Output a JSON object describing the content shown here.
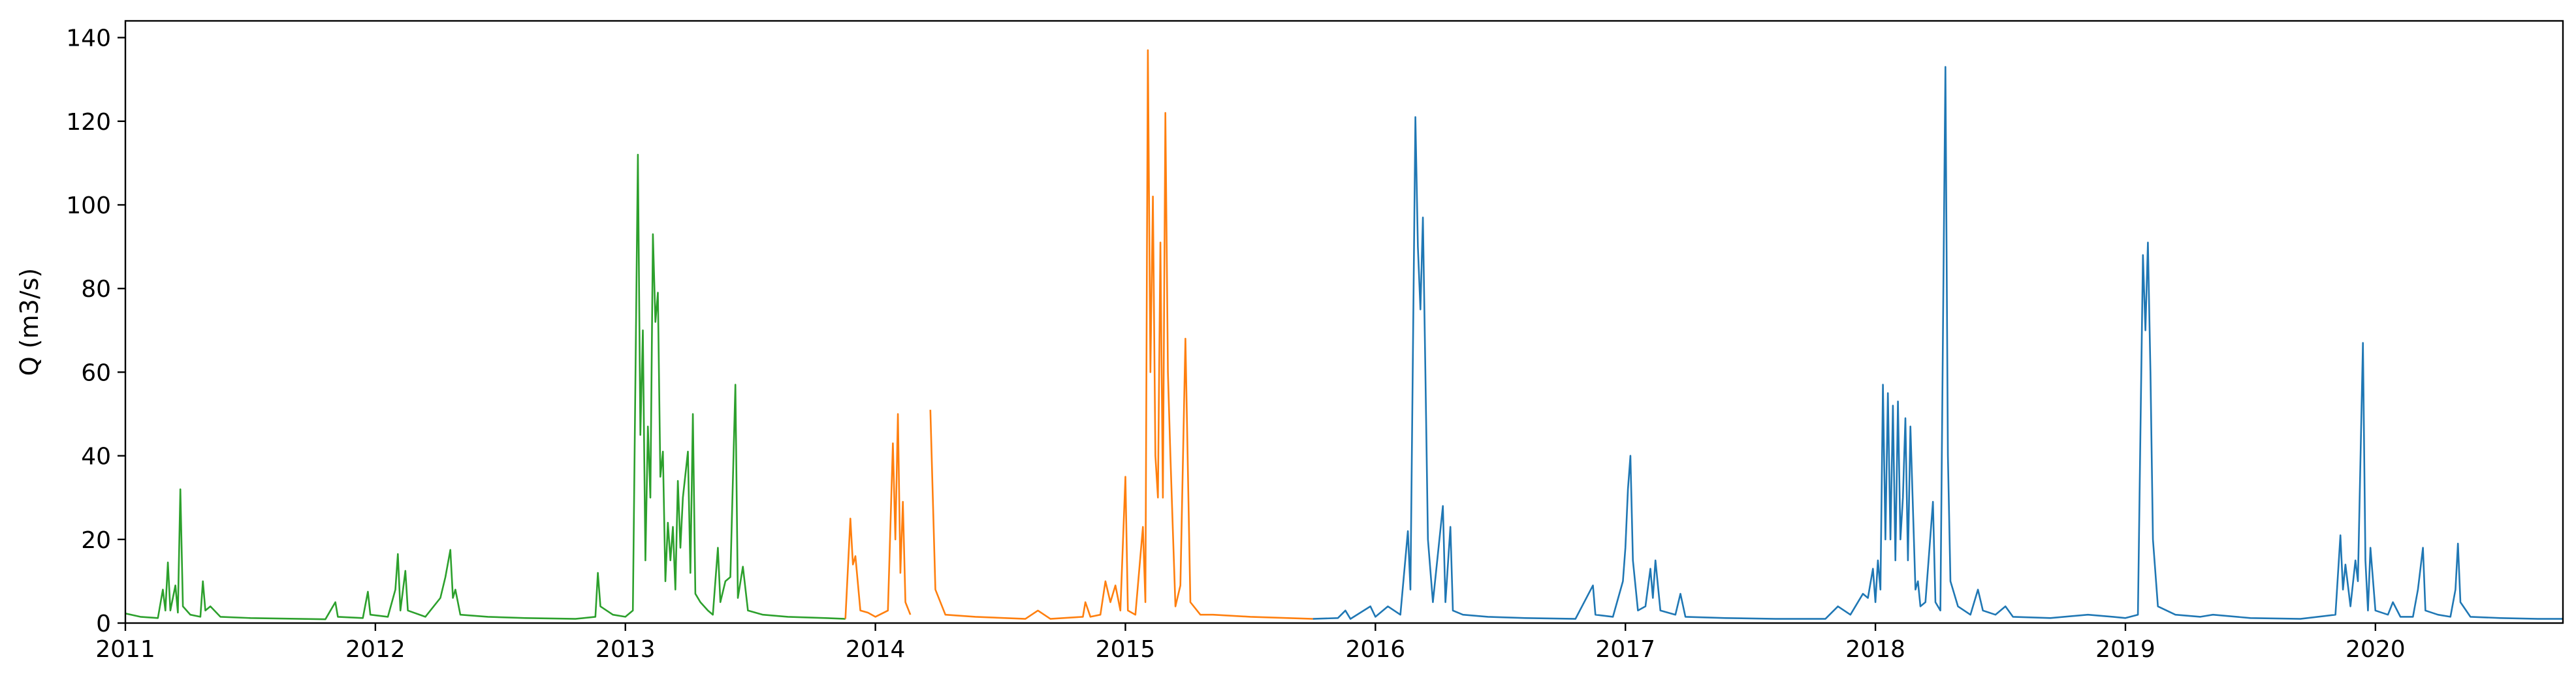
{
  "chart_data": {
    "type": "line",
    "title": "",
    "xlabel": "",
    "ylabel": "Q (m3/s)",
    "xlim": [
      2011.0,
      2020.75
    ],
    "ylim": [
      0,
      144
    ],
    "grid": false,
    "legend": "none",
    "x_ticks": [
      2011,
      2012,
      2013,
      2014,
      2015,
      2016,
      2017,
      2018,
      2019,
      2020
    ],
    "x_tick_labels": [
      "2011",
      "2012",
      "2013",
      "2014",
      "2015",
      "2016",
      "2017",
      "2018",
      "2019",
      "2020"
    ],
    "y_ticks": [
      0,
      20,
      40,
      60,
      80,
      100,
      120,
      140
    ],
    "y_tick_labels": [
      "0",
      "20",
      "40",
      "60",
      "80",
      "100",
      "120",
      "140"
    ],
    "series": [
      {
        "color": "#2ca02c",
        "segments": [
          [
            [
              2011.0,
              2.3
            ],
            [
              2011.06,
              1.5
            ],
            [
              2011.13,
              1.2
            ],
            [
              2011.15,
              8
            ],
            [
              2011.16,
              3
            ],
            [
              2011.17,
              14.5
            ],
            [
              2011.18,
              3
            ],
            [
              2011.2,
              9
            ],
            [
              2011.21,
              2.5
            ],
            [
              2011.22,
              32
            ],
            [
              2011.23,
              4
            ],
            [
              2011.26,
              2
            ],
            [
              2011.3,
              1.5
            ],
            [
              2011.31,
              10
            ],
            [
              2011.32,
              3
            ],
            [
              2011.34,
              4
            ],
            [
              2011.38,
              1.5
            ],
            [
              2011.5,
              1.2
            ],
            [
              2011.7,
              1
            ],
            [
              2011.8,
              0.9
            ],
            [
              2011.84,
              5
            ],
            [
              2011.85,
              1.5
            ],
            [
              2011.95,
              1.2
            ],
            [
              2011.97,
              7.5
            ],
            [
              2011.98,
              2
            ],
            [
              2012.05,
              1.5
            ],
            [
              2012.08,
              8
            ],
            [
              2012.09,
              16.5
            ],
            [
              2012.1,
              3
            ],
            [
              2012.12,
              12.5
            ],
            [
              2012.13,
              3
            ],
            [
              2012.2,
              1.5
            ],
            [
              2012.26,
              6
            ],
            [
              2012.28,
              11
            ],
            [
              2012.3,
              17.5
            ],
            [
              2012.31,
              6
            ],
            [
              2012.32,
              8
            ],
            [
              2012.34,
              2
            ],
            [
              2012.45,
              1.5
            ],
            [
              2012.6,
              1.2
            ],
            [
              2012.8,
              1
            ],
            [
              2012.88,
              1.5
            ],
            [
              2012.89,
              12
            ],
            [
              2012.9,
              4
            ],
            [
              2012.95,
              2
            ],
            [
              2013.0,
              1.5
            ],
            [
              2013.03,
              3
            ],
            [
              2013.05,
              112
            ],
            [
              2013.06,
              45
            ],
            [
              2013.07,
              70
            ],
            [
              2013.08,
              15
            ],
            [
              2013.09,
              47
            ],
            [
              2013.1,
              30
            ],
            [
              2013.11,
              93
            ],
            [
              2013.12,
              72
            ],
            [
              2013.13,
              79
            ],
            [
              2013.14,
              35
            ],
            [
              2013.15,
              41
            ],
            [
              2013.16,
              10
            ],
            [
              2013.17,
              24
            ],
            [
              2013.18,
              15
            ],
            [
              2013.19,
              23
            ],
            [
              2013.2,
              8
            ],
            [
              2013.21,
              34
            ],
            [
              2013.22,
              18
            ],
            [
              2013.23,
              30
            ],
            [
              2013.25,
              41
            ],
            [
              2013.26,
              12
            ],
            [
              2013.27,
              50
            ],
            [
              2013.28,
              7
            ],
            [
              2013.3,
              5
            ],
            [
              2013.33,
              3
            ],
            [
              2013.35,
              2
            ],
            [
              2013.37,
              18
            ],
            [
              2013.38,
              5
            ],
            [
              2013.4,
              10
            ],
            [
              2013.42,
              11
            ],
            [
              2013.44,
              57
            ],
            [
              2013.45,
              6
            ],
            [
              2013.47,
              13.5
            ],
            [
              2013.49,
              3
            ],
            [
              2013.55,
              2
            ],
            [
              2013.65,
              1.5
            ],
            [
              2013.8,
              1.2
            ],
            [
              2013.88,
              1
            ]
          ]
        ]
      },
      {
        "color": "#ff7f0e",
        "segments": [
          [
            [
              2013.88,
              1
            ],
            [
              2013.9,
              25
            ],
            [
              2013.91,
              14
            ],
            [
              2013.92,
              16
            ],
            [
              2013.94,
              3
            ],
            [
              2013.97,
              2.5
            ],
            [
              2014.0,
              1.5
            ],
            [
              2014.05,
              3
            ],
            [
              2014.07,
              43
            ],
            [
              2014.08,
              20
            ],
            [
              2014.09,
              50
            ],
            [
              2014.1,
              12
            ],
            [
              2014.11,
              29
            ],
            [
              2014.12,
              5
            ],
            [
              2014.14,
              2
            ]
          ],
          [
            [
              2014.22,
              51
            ],
            [
              2014.24,
              8
            ],
            [
              2014.28,
              2
            ],
            [
              2014.4,
              1.5
            ],
            [
              2014.6,
              1
            ],
            [
              2014.65,
              3
            ],
            [
              2014.7,
              1
            ],
            [
              2014.83,
              1.5
            ],
            [
              2014.84,
              5
            ],
            [
              2014.86,
              1.5
            ],
            [
              2014.9,
              2
            ],
            [
              2014.92,
              10
            ],
            [
              2014.94,
              5
            ],
            [
              2014.96,
              9
            ],
            [
              2014.98,
              3
            ],
            [
              2015.0,
              35
            ],
            [
              2015.01,
              3
            ],
            [
              2015.04,
              2
            ],
            [
              2015.07,
              23
            ],
            [
              2015.08,
              5
            ],
            [
              2015.09,
              137
            ],
            [
              2015.1,
              60
            ],
            [
              2015.11,
              102
            ],
            [
              2015.12,
              40
            ],
            [
              2015.13,
              30
            ],
            [
              2015.14,
              91
            ],
            [
              2015.15,
              30
            ],
            [
              2015.16,
              122
            ],
            [
              2015.17,
              60
            ],
            [
              2015.18,
              40
            ],
            [
              2015.19,
              22
            ],
            [
              2015.2,
              4
            ],
            [
              2015.22,
              9
            ],
            [
              2015.24,
              68
            ],
            [
              2015.26,
              5
            ],
            [
              2015.3,
              2
            ],
            [
              2015.35,
              2
            ],
            [
              2015.5,
              1.5
            ],
            [
              2015.65,
              1.2
            ],
            [
              2015.75,
              1
            ]
          ]
        ]
      },
      {
        "color": "#1f77b4",
        "segments": [
          [
            [
              2015.75,
              1
            ],
            [
              2015.85,
              1.2
            ],
            [
              2015.88,
              3
            ],
            [
              2015.9,
              1
            ],
            [
              2015.98,
              4
            ],
            [
              2016.0,
              1.5
            ],
            [
              2016.05,
              4
            ],
            [
              2016.1,
              2
            ],
            [
              2016.13,
              22
            ],
            [
              2016.14,
              8
            ],
            [
              2016.16,
              121
            ],
            [
              2016.17,
              90
            ],
            [
              2016.18,
              75
            ],
            [
              2016.19,
              97
            ],
            [
              2016.2,
              60
            ],
            [
              2016.21,
              20
            ],
            [
              2016.23,
              5
            ],
            [
              2016.27,
              28
            ],
            [
              2016.28,
              5
            ],
            [
              2016.3,
              23
            ],
            [
              2016.31,
              3
            ],
            [
              2016.35,
              2
            ],
            [
              2016.45,
              1.5
            ],
            [
              2016.6,
              1.2
            ],
            [
              2016.8,
              1
            ],
            [
              2016.87,
              9
            ],
            [
              2016.88,
              2
            ],
            [
              2016.95,
              1.5
            ],
            [
              2016.99,
              10
            ],
            [
              2017.0,
              18
            ],
            [
              2017.01,
              32
            ],
            [
              2017.02,
              40
            ],
            [
              2017.03,
              15
            ],
            [
              2017.05,
              3
            ],
            [
              2017.08,
              4
            ],
            [
              2017.1,
              13
            ],
            [
              2017.11,
              6
            ],
            [
              2017.12,
              15
            ],
            [
              2017.14,
              3
            ],
            [
              2017.2,
              2
            ],
            [
              2017.22,
              7
            ],
            [
              2017.24,
              1.5
            ],
            [
              2017.4,
              1.2
            ],
            [
              2017.6,
              1
            ],
            [
              2017.8,
              1
            ],
            [
              2017.85,
              4
            ],
            [
              2017.9,
              2
            ],
            [
              2017.95,
              7
            ],
            [
              2017.97,
              6
            ],
            [
              2017.99,
              13
            ],
            [
              2018.0,
              5
            ],
            [
              2018.01,
              15
            ],
            [
              2018.02,
              8
            ],
            [
              2018.03,
              57
            ],
            [
              2018.04,
              20
            ],
            [
              2018.05,
              55
            ],
            [
              2018.06,
              20
            ],
            [
              2018.07,
              52
            ],
            [
              2018.08,
              15
            ],
            [
              2018.09,
              53
            ],
            [
              2018.1,
              20
            ],
            [
              2018.11,
              30
            ],
            [
              2018.12,
              49
            ],
            [
              2018.13,
              15
            ],
            [
              2018.14,
              47
            ],
            [
              2018.16,
              8
            ],
            [
              2018.17,
              10
            ],
            [
              2018.18,
              4
            ],
            [
              2018.2,
              5
            ],
            [
              2018.23,
              29
            ],
            [
              2018.24,
              5
            ],
            [
              2018.26,
              3
            ],
            [
              2018.28,
              133
            ],
            [
              2018.29,
              40
            ],
            [
              2018.3,
              10
            ],
            [
              2018.33,
              4
            ],
            [
              2018.38,
              2
            ],
            [
              2018.41,
              8
            ],
            [
              2018.43,
              3
            ],
            [
              2018.48,
              2
            ],
            [
              2018.52,
              4
            ],
            [
              2018.55,
              1.5
            ],
            [
              2018.7,
              1.2
            ],
            [
              2018.85,
              2
            ],
            [
              2018.95,
              1.5
            ],
            [
              2019.0,
              1.2
            ],
            [
              2019.05,
              2
            ],
            [
              2019.06,
              45
            ],
            [
              2019.07,
              88
            ],
            [
              2019.08,
              70
            ],
            [
              2019.09,
              91
            ],
            [
              2019.1,
              60
            ],
            [
              2019.11,
              20
            ],
            [
              2019.13,
              4
            ],
            [
              2019.2,
              2
            ],
            [
              2019.3,
              1.5
            ],
            [
              2019.35,
              2
            ],
            [
              2019.5,
              1.2
            ],
            [
              2019.7,
              1
            ],
            [
              2019.84,
              2
            ],
            [
              2019.86,
              21
            ],
            [
              2019.87,
              8
            ],
            [
              2019.88,
              14
            ],
            [
              2019.9,
              4
            ],
            [
              2019.92,
              15
            ],
            [
              2019.93,
              10
            ],
            [
              2019.95,
              67
            ],
            [
              2019.96,
              15
            ],
            [
              2019.97,
              3
            ],
            [
              2019.98,
              18
            ],
            [
              2020.0,
              3
            ],
            [
              2020.05,
              2
            ],
            [
              2020.07,
              5
            ],
            [
              2020.1,
              1.5
            ],
            [
              2020.15,
              1.5
            ],
            [
              2020.17,
              8
            ],
            [
              2020.19,
              18
            ],
            [
              2020.2,
              3
            ],
            [
              2020.25,
              2
            ],
            [
              2020.3,
              1.5
            ],
            [
              2020.32,
              8
            ],
            [
              2020.33,
              19
            ],
            [
              2020.34,
              5
            ],
            [
              2020.38,
              1.5
            ],
            [
              2020.5,
              1.2
            ],
            [
              2020.65,
              1
            ],
            [
              2020.75,
              1
            ]
          ]
        ]
      }
    ]
  }
}
